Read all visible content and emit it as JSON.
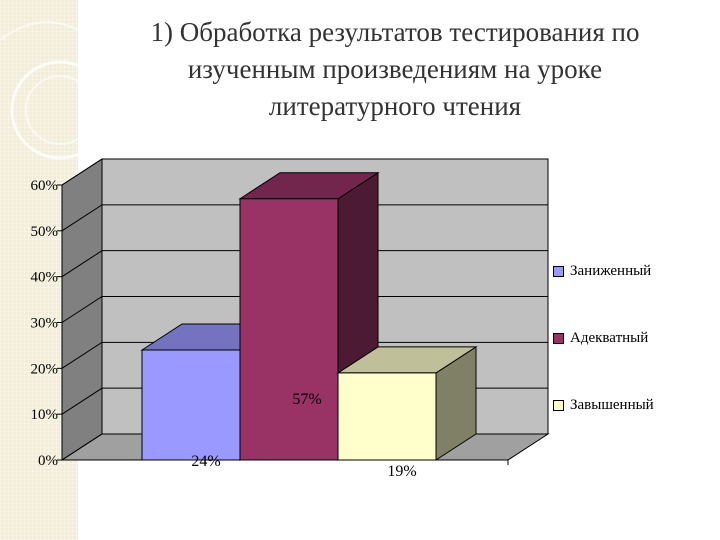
{
  "title_lines": [
    "1) Обработка результатов тестирования по",
    "изученным  произведениям на уроке",
    "литературного чтения"
  ],
  "chart_data": {
    "type": "bar",
    "style": "3d-columns",
    "categories": [
      "Заниженный",
      "Адекватный",
      "Завышенный"
    ],
    "values": [
      24,
      57,
      19
    ],
    "value_labels": [
      "24%",
      "57%",
      "19%"
    ],
    "ylim": [
      0,
      60
    ],
    "yticks": [
      "0%",
      "10%",
      "20%",
      "30%",
      "40%",
      "50%",
      "60%"
    ],
    "grid": true,
    "legend": {
      "position": "right",
      "entries": [
        "Заниженный",
        "Адекватный",
        "Завышенный"
      ]
    },
    "colors": {
      "Заниженный": "#9999ff",
      "Адекватный": "#993366",
      "Завышенный": "#ffffcc"
    }
  }
}
